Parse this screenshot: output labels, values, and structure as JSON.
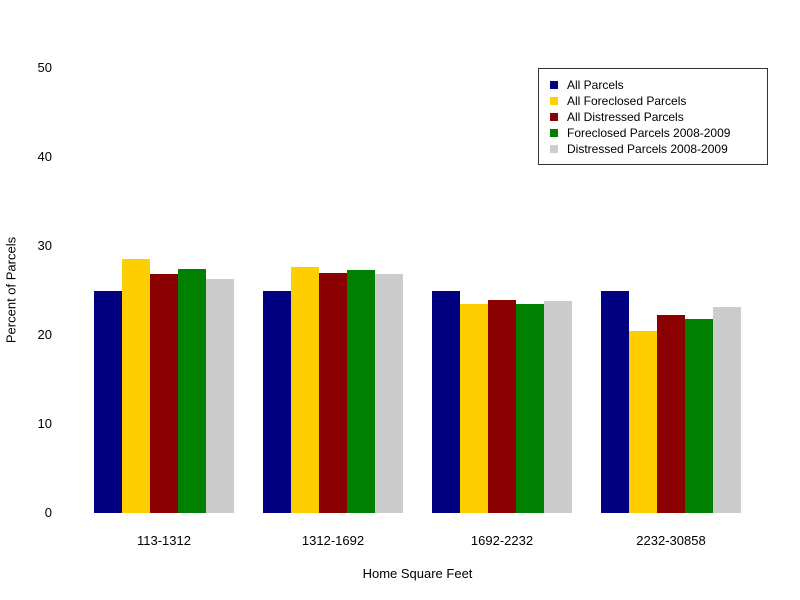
{
  "chart_data": {
    "type": "bar",
    "title": "",
    "xlabel": "Home Square Feet",
    "ylabel": "Percent of Parcels",
    "ylim": [
      0,
      50
    ],
    "yticks": [
      0,
      10,
      20,
      30,
      40,
      50
    ],
    "grid": false,
    "axis_lines": false,
    "legend_position": "upper right",
    "categories": [
      "113-1312",
      "1312-1692",
      "1692-2232",
      "2232-30858"
    ],
    "series": [
      {
        "name": "All Parcels",
        "color": "#000080",
        "values": [
          25.0,
          25.0,
          25.0,
          25.0
        ]
      },
      {
        "name": "All Foreclosed Parcels",
        "color": "#FFCE00",
        "values": [
          28.5,
          27.6,
          23.5,
          20.4
        ]
      },
      {
        "name": "All Distressed Parcels",
        "color": "#8B0000",
        "values": [
          26.9,
          27.0,
          23.9,
          22.2
        ]
      },
      {
        "name": "Foreclosed Parcels 2008-2009",
        "color": "#008000",
        "values": [
          27.4,
          27.3,
          23.5,
          21.8
        ]
      },
      {
        "name": "Distressed Parcels 2008-2009",
        "color": "#CCCCCC",
        "values": [
          26.3,
          26.8,
          23.8,
          23.1
        ]
      }
    ]
  }
}
